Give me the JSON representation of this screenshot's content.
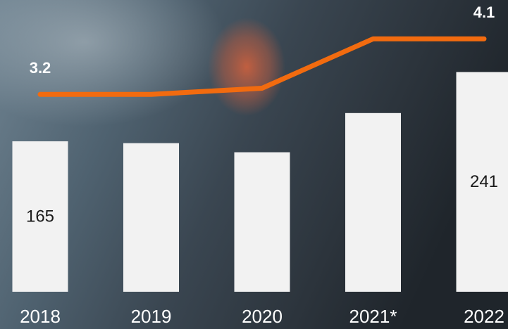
{
  "chart_data": {
    "type": "combo",
    "categories": [
      "2018",
      "2019",
      "2020",
      "2021*",
      "2022"
    ],
    "series": [
      {
        "type": "bar",
        "color": "#f2f2f2",
        "values": [
          165,
          163,
          153,
          196,
          241
        ],
        "value_labels": [
          "165",
          null,
          null,
          null,
          "241"
        ]
      },
      {
        "type": "line",
        "axis": "y2",
        "color": "#f26b0f",
        "values": [
          3.2,
          3.2,
          3.3,
          4.1,
          4.1
        ],
        "value_labels": [
          "3.2",
          null,
          null,
          null,
          "4.1"
        ]
      }
    ],
    "ylim": [
      0,
      320
    ],
    "y2lim": [
      0,
      4.73
    ]
  }
}
